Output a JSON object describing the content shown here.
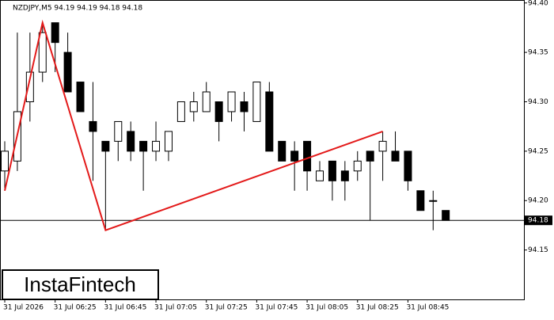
{
  "chart_data": {
    "type": "candlestick",
    "title": "NZDJPY,M5  94.19 94.19 94.18 94.18",
    "watermark": "InstaFintech",
    "categories": [
      "31 Jul 2026",
      null,
      null,
      null,
      "31 Jul 06:25",
      null,
      null,
      null,
      "31 Jul 06:45",
      null,
      null,
      null,
      "31 Jul 07:05",
      null,
      null,
      null,
      "31 Jul 07:25",
      null,
      null,
      null,
      "31 Jul 07:45",
      null,
      null,
      null,
      "31 Jul 08:05",
      null,
      null,
      null,
      "31 Jul 08:25",
      null,
      null,
      null,
      "31 Jul 08:45",
      null,
      null,
      null
    ],
    "open": [
      94.23,
      94.24,
      94.3,
      94.33,
      94.38,
      94.35,
      94.32,
      94.28,
      94.26,
      94.26,
      94.27,
      94.26,
      94.25,
      94.25,
      94.28,
      94.29,
      94.29,
      94.3,
      94.29,
      94.3,
      94.28,
      94.31,
      94.26,
      94.25,
      94.26,
      94.22,
      94.24,
      94.23,
      94.23,
      94.25,
      94.25,
      94.25,
      94.25,
      94.21,
      94.2,
      94.19
    ],
    "high": [
      94.26,
      94.37,
      94.37,
      94.38,
      94.38,
      94.37,
      94.32,
      94.32,
      94.26,
      94.28,
      94.28,
      94.26,
      94.28,
      94.27,
      94.3,
      94.31,
      94.32,
      94.3,
      94.31,
      94.31,
      94.32,
      94.32,
      94.26,
      94.26,
      94.26,
      94.24,
      94.24,
      94.24,
      94.25,
      94.25,
      94.27,
      94.27,
      94.25,
      94.21,
      94.21,
      94.19
    ],
    "low": [
      94.21,
      94.23,
      94.28,
      94.32,
      94.33,
      94.31,
      94.29,
      94.22,
      94.17,
      94.24,
      94.24,
      94.21,
      94.24,
      94.24,
      94.28,
      94.28,
      94.29,
      94.26,
      94.28,
      94.27,
      94.28,
      94.25,
      94.24,
      94.21,
      94.21,
      94.22,
      94.2,
      94.2,
      94.22,
      94.18,
      94.22,
      94.24,
      94.21,
      94.19,
      94.17,
      94.18
    ],
    "close": [
      94.25,
      94.29,
      94.33,
      94.37,
      94.36,
      94.31,
      94.29,
      94.27,
      94.25,
      94.28,
      94.25,
      94.25,
      94.26,
      94.27,
      94.3,
      94.3,
      94.31,
      94.28,
      94.31,
      94.29,
      94.32,
      94.25,
      94.24,
      94.24,
      94.23,
      94.23,
      94.22,
      94.22,
      94.24,
      94.24,
      94.26,
      94.24,
      94.22,
      94.19,
      94.2,
      94.18
    ],
    "ylim": [
      94.1,
      94.403
    ],
    "yticks": [
      {
        "value": 94.4,
        "label": "94.40"
      },
      94.35,
      {
        "value": 94.3,
        "label": "94.30"
      },
      94.25,
      {
        "value": 94.2,
        "label": "94.20"
      },
      94.15
    ],
    "last_price": 94.18,
    "pattern_line": {
      "color": "#e31a1a",
      "x": [
        0,
        3,
        8,
        30
      ],
      "y": [
        94.21,
        94.38,
        94.17,
        94.27
      ]
    }
  }
}
